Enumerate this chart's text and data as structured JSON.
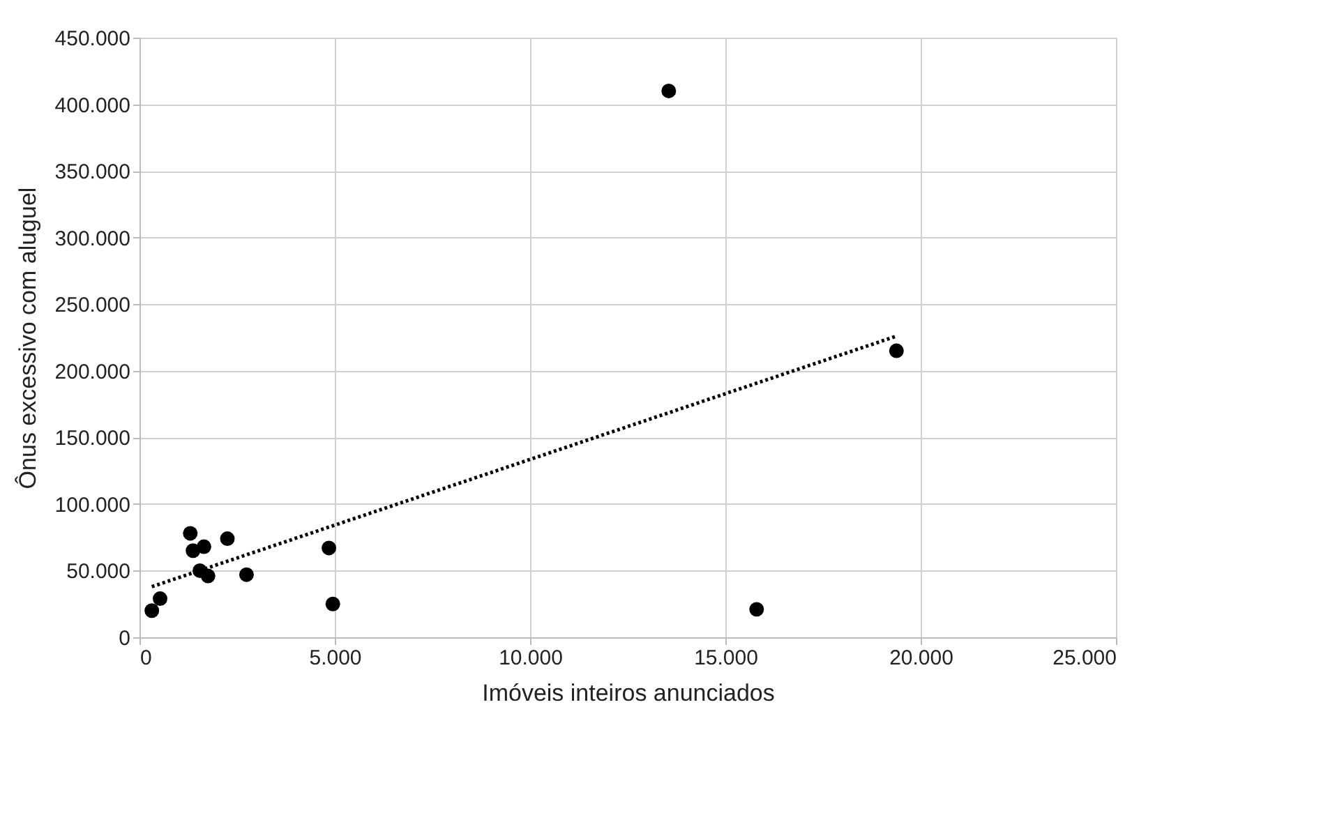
{
  "chart_data": {
    "type": "scatter",
    "xlabel": "Imóveis inteiros anunciados",
    "ylabel": "Ônus excessivo com aluguel",
    "x": [
      316,
      527,
      1300,
      1370,
      1650,
      1545,
      1755,
      2250,
      2740,
      4850,
      4950,
      13550,
      15800,
      19380
    ],
    "series": [
      {
        "color": "#000000",
        "marker": "circle",
        "values": [
          20000,
          29000,
          78000,
          65000,
          68000,
          50000,
          46000,
          74000,
          47000,
          67000,
          25000,
          410000,
          21000,
          215000
        ]
      },
      {
        "type": "line",
        "color": "#000000",
        "line_style": "dotted",
        "x": [
          316,
          19380
        ],
        "values": [
          38000,
          226000
        ]
      }
    ],
    "xlim": [
      0,
      25000
    ],
    "ylim": [
      0,
      450000
    ],
    "xticks": [
      0,
      {
        "value": 5000,
        "label": "5.000"
      },
      {
        "value": 10000,
        "label": "10.000"
      },
      {
        "value": 15000,
        "label": "15.000"
      },
      {
        "value": 20000,
        "label": "20.000"
      },
      {
        "value": 25000,
        "label": "25.000"
      }
    ],
    "yticks": [
      0,
      {
        "value": 50000,
        "label": "50.000"
      },
      {
        "value": 100000,
        "label": "100.000"
      },
      {
        "value": 150000,
        "label": "150.000"
      },
      {
        "value": 200000,
        "label": "200.000"
      },
      {
        "value": 250000,
        "label": "250.000"
      },
      {
        "value": 300000,
        "label": "300.000"
      },
      {
        "value": 350000,
        "label": "350.000"
      },
      {
        "value": 400000,
        "label": "400.000"
      },
      {
        "value": 450000,
        "label": "450.000"
      }
    ],
    "grid": true
  }
}
